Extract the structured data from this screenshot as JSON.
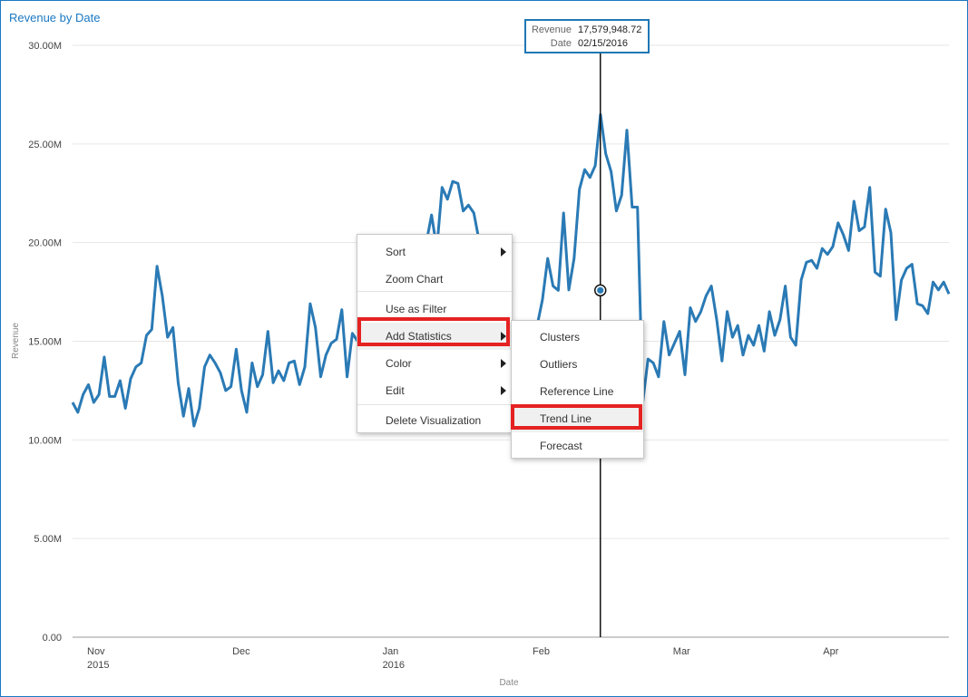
{
  "viz": {
    "title": "Revenue by Date"
  },
  "tooltip": {
    "revenue_label": "Revenue",
    "revenue_value": "17,579,948.72",
    "date_label": "Date",
    "date_value": "02/15/2016"
  },
  "context_menu": {
    "items": [
      {
        "label": "Sort",
        "submenu": true
      },
      {
        "label": "Zoom Chart",
        "submenu": false
      },
      {
        "label": "Use as Filter",
        "submenu": false
      },
      {
        "label": "Add Statistics",
        "submenu": true,
        "highlighted": true
      },
      {
        "label": "Color",
        "submenu": true
      },
      {
        "label": "Edit",
        "submenu": true
      },
      {
        "label": "Delete Visualization",
        "submenu": false
      }
    ]
  },
  "submenu": {
    "items": [
      {
        "label": "Clusters"
      },
      {
        "label": "Outliers"
      },
      {
        "label": "Reference Line"
      },
      {
        "label": "Trend Line",
        "highlighted": true
      },
      {
        "label": "Forecast"
      }
    ]
  },
  "chart_data": {
    "type": "line",
    "title": "",
    "xlabel": "Date",
    "ylabel": "Revenue",
    "ylim": [
      0,
      30000000
    ],
    "y_ticks": [
      "0.00",
      "5.00M",
      "10.00M",
      "15.00M",
      "20.00M",
      "25.00M",
      "30.00M"
    ],
    "x_ticks": [
      {
        "label": "Nov",
        "sub": "2015"
      },
      {
        "label": "Dec",
        "sub": ""
      },
      {
        "label": "Jan",
        "sub": "2016"
      },
      {
        "label": "Feb",
        "sub": ""
      },
      {
        "label": "Mar",
        "sub": ""
      },
      {
        "label": "Apr",
        "sub": ""
      }
    ],
    "grid": true,
    "line_color": "#2a7ab5",
    "series": [
      {
        "x_start": "2015-10-29",
        "x_end": "2016-04-27",
        "values": [
          11.9,
          11.4,
          12.3,
          12.8,
          11.9,
          12.3,
          14.2,
          12.2,
          12.2,
          13.0,
          11.6,
          13.1,
          13.7,
          13.9,
          15.3,
          15.6,
          18.8,
          17.3,
          15.2,
          15.7,
          12.9,
          11.2,
          12.6,
          10.7,
          11.6,
          13.7,
          14.3,
          13.9,
          13.4,
          12.5,
          12.7,
          14.6,
          12.5,
          11.4,
          13.9,
          12.7,
          13.3,
          15.5,
          12.9,
          13.5,
          13.0,
          13.9,
          14.0,
          12.8,
          13.7,
          16.9,
          15.7,
          13.2,
          14.3,
          14.9,
          15.1,
          16.6,
          13.2,
          15.4,
          15.0,
          14.5,
          15.4,
          13.5,
          17.2,
          17.6,
          16.9,
          15.2,
          16.0,
          17.0,
          15.6,
          18.2,
          17.8,
          20.0,
          21.4,
          19.7,
          22.8,
          22.2,
          23.1,
          23.0,
          21.6,
          21.9,
          21.5,
          20.1,
          19.0,
          18.2,
          17.2,
          16.3,
          15.6,
          15.1,
          14.0,
          13.0,
          12.2,
          13.5,
          15.8,
          17.1,
          19.2,
          17.8,
          17.58,
          21.5,
          17.6,
          19.2,
          22.7,
          23.7,
          23.3,
          23.9,
          26.5,
          24.5,
          23.6,
          21.6,
          22.4,
          25.7,
          21.8,
          21.8,
          11.9,
          14.1,
          13.9,
          13.2,
          16.0,
          14.3,
          14.9,
          15.5,
          13.3,
          16.7,
          16.0,
          16.5,
          17.3,
          17.8,
          16.1,
          14.0,
          16.5,
          15.2,
          15.8,
          14.3,
          15.3,
          14.8,
          15.8,
          14.5,
          16.5,
          15.3,
          16.1,
          17.8,
          15.2,
          14.8,
          18.1,
          19.0,
          19.1,
          18.7,
          19.7,
          19.4,
          19.8,
          21.0,
          20.4,
          19.6,
          22.1,
          20.6,
          20.8,
          22.8,
          18.5,
          18.3,
          21.7,
          20.5,
          16.1,
          18.1,
          18.7,
          18.9,
          16.9,
          16.8,
          16.4,
          18.0,
          17.6,
          18.0,
          17.4
        ]
      }
    ],
    "hover_point": {
      "date": "2016-02-15",
      "value": 17579948.72
    }
  }
}
